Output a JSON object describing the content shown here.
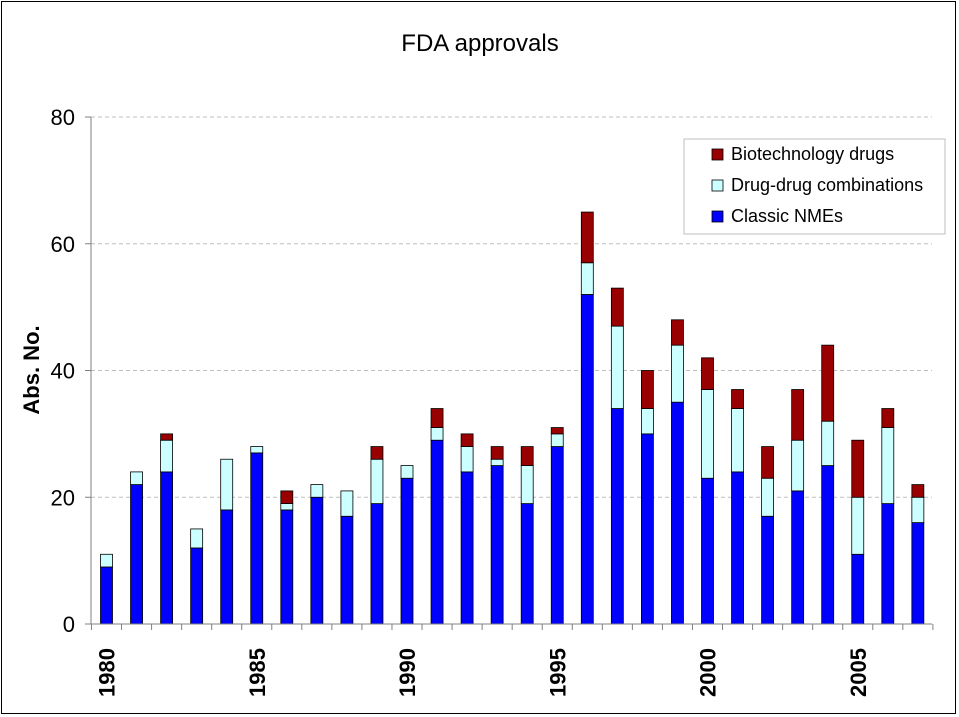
{
  "chart_data": {
    "type": "bar",
    "stacked": true,
    "title": "FDA approvals",
    "xlabel": "",
    "ylabel": "Abs. No.",
    "ylim": [
      0,
      80
    ],
    "yticks": [
      "0",
      "20",
      "40",
      "60",
      "80"
    ],
    "grid": true,
    "legend_position": "top-right",
    "categories": [
      "1980",
      "1981",
      "1982",
      "1983",
      "1984",
      "1985",
      "1986",
      "1987",
      "1988",
      "1989",
      "1990",
      "1991",
      "1992",
      "1993",
      "1994",
      "1995",
      "1996",
      "1997",
      "1998",
      "1999",
      "2000",
      "2001",
      "2002",
      "2003",
      "2004",
      "2005",
      "2006",
      "2007"
    ],
    "xtick_labels": [
      "1980",
      "1985",
      "1990",
      "1995",
      "2000",
      "2005"
    ],
    "series": [
      {
        "name": "Classic NMEs",
        "color": "#0000ff",
        "values": [
          9,
          22,
          24,
          12,
          18,
          27,
          18,
          20,
          17,
          19,
          23,
          29,
          24,
          25,
          19,
          28,
          52,
          34,
          30,
          35,
          23,
          24,
          17,
          21,
          25,
          11,
          19,
          16
        ]
      },
      {
        "name": "Drug-drug combinations",
        "color": "#ccffff",
        "values": [
          2,
          2,
          5,
          3,
          8,
          1,
          1,
          2,
          4,
          7,
          2,
          2,
          4,
          1,
          6,
          2,
          5,
          13,
          4,
          9,
          14,
          10,
          6,
          8,
          7,
          9,
          12,
          4
        ]
      },
      {
        "name": "Biotechnology drugs",
        "color": "#990000",
        "values": [
          0,
          0,
          1,
          0,
          0,
          0,
          2,
          0,
          0,
          2,
          0,
          3,
          2,
          2,
          3,
          1,
          8,
          6,
          6,
          4,
          5,
          3,
          5,
          8,
          12,
          9,
          3,
          2
        ]
      }
    ],
    "legend_order": [
      "Biotechnology drugs",
      "Drug-drug combinations",
      "Classic NMEs"
    ]
  }
}
